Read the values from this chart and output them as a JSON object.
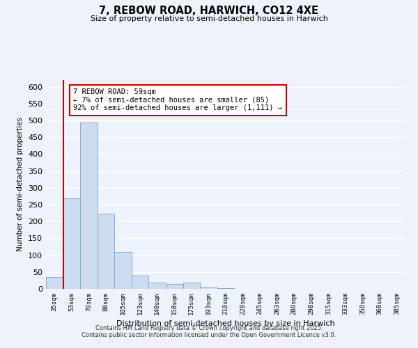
{
  "title": "7, REBOW ROAD, HARWICH, CO12 4XE",
  "subtitle": "Size of property relative to semi-detached houses in Harwich",
  "xlabel": "Distribution of semi-detached houses by size in Harwich",
  "ylabel": "Number of semi-detached properties",
  "bar_labels": [
    "35sqm",
    "53sqm",
    "70sqm",
    "88sqm",
    "105sqm",
    "123sqm",
    "140sqm",
    "158sqm",
    "175sqm",
    "193sqm",
    "210sqm",
    "228sqm",
    "245sqm",
    "263sqm",
    "280sqm",
    "298sqm",
    "315sqm",
    "333sqm",
    "350sqm",
    "368sqm",
    "385sqm"
  ],
  "bar_values": [
    35,
    268,
    493,
    224,
    110,
    40,
    18,
    15,
    18,
    5,
    2,
    1,
    1,
    0,
    0,
    0,
    0,
    0,
    0,
    0,
    0
  ],
  "bar_color": "#ccddf0",
  "bar_edge_color": "#88aad0",
  "vline_color": "#cc0000",
  "annotation_text": "7 REBOW ROAD: 59sqm\n← 7% of semi-detached houses are smaller (85)\n92% of semi-detached houses are larger (1,111) →",
  "annotation_box_color": "#ffffff",
  "annotation_box_edge": "#cc0000",
  "ylim": [
    0,
    620
  ],
  "yticks": [
    0,
    50,
    100,
    150,
    200,
    250,
    300,
    350,
    400,
    450,
    500,
    550,
    600
  ],
  "footer_line1": "Contains HM Land Registry data © Crown copyright and database right 2025.",
  "footer_line2": "Contains public sector information licensed under the Open Government Licence v3.0.",
  "background_color": "#eef2fa",
  "grid_color": "#ffffff"
}
